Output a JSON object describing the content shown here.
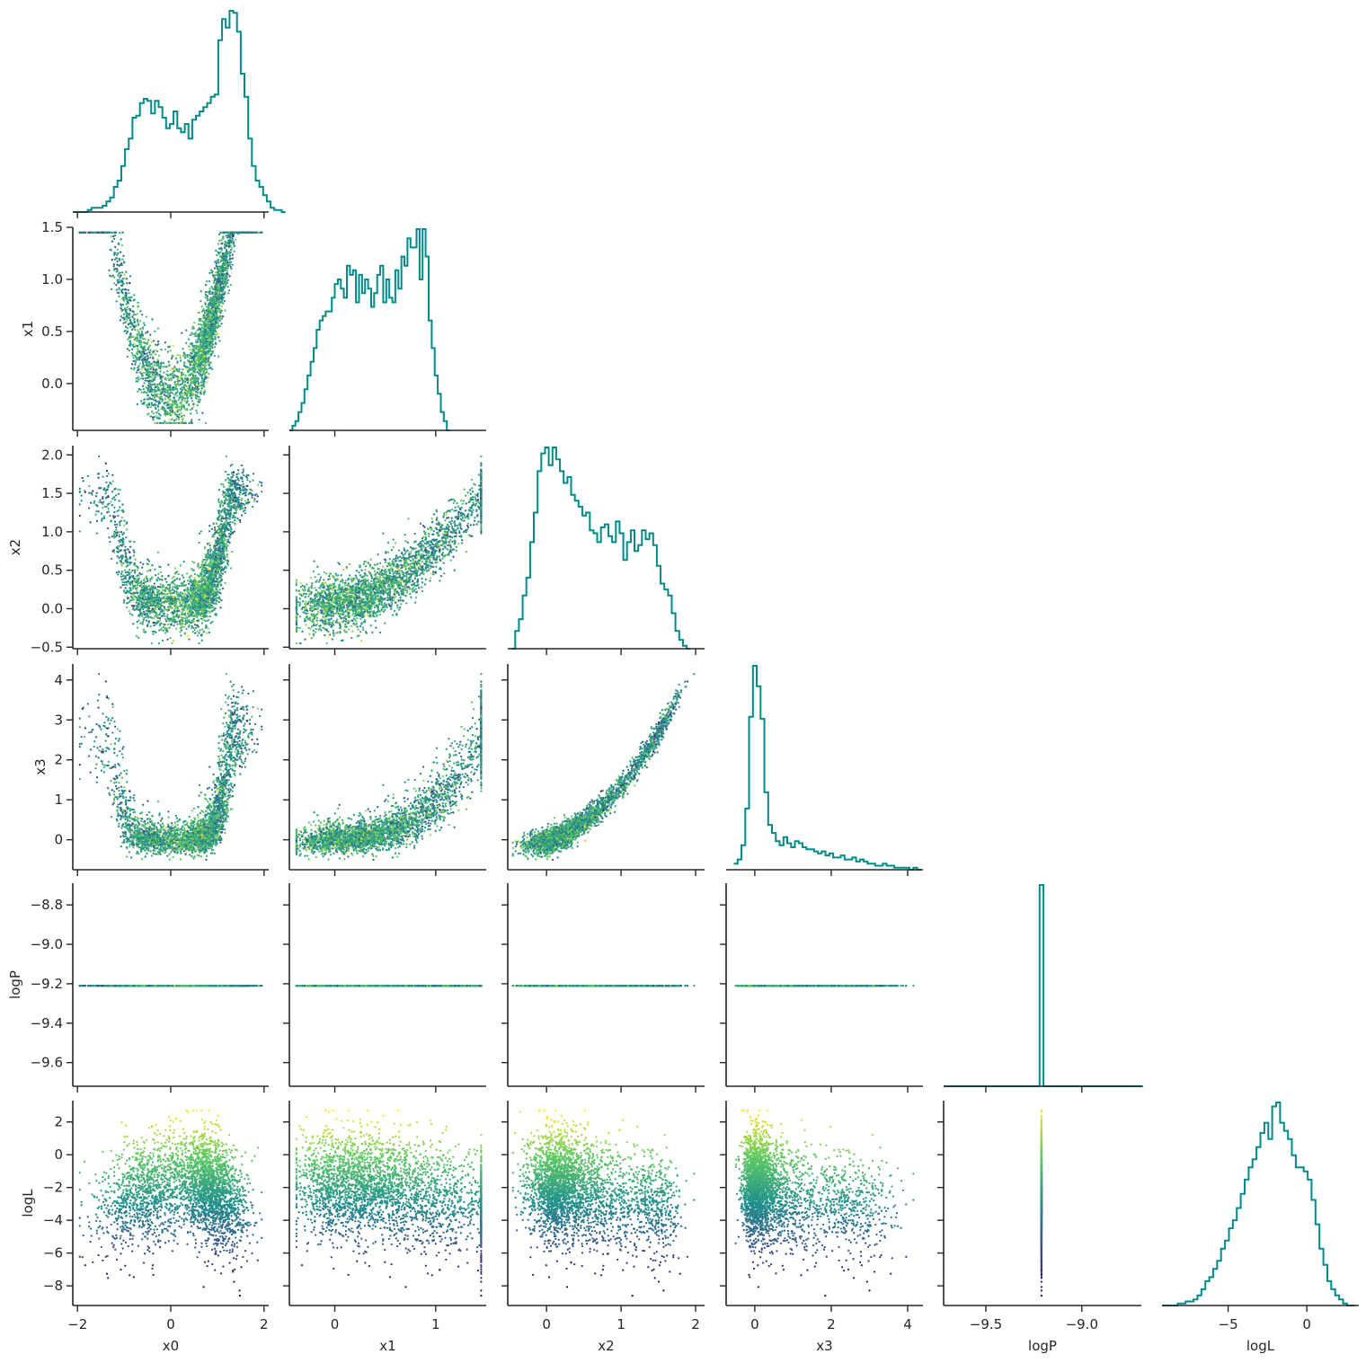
{
  "chart_data": {
    "type": "scatter",
    "kind": "corner-plot",
    "variables": [
      "x0",
      "x1",
      "x2",
      "x3",
      "logP",
      "logL"
    ],
    "axis_labels": [
      "x0",
      "x1",
      "x2",
      "x3",
      "logP",
      "logL"
    ],
    "ranges": {
      "x0": [
        -2.1,
        2.1
      ],
      "x1": [
        -0.45,
        1.5
      ],
      "x2": [
        -0.52,
        2.12
      ],
      "x3": [
        -0.75,
        4.4
      ],
      "logP": [
        -9.72,
        -8.69
      ],
      "logL": [
        -9.2,
        3.3
      ]
    },
    "ticks": {
      "x0": [
        -2,
        0,
        2
      ],
      "x1": [
        0,
        1
      ],
      "x2": [
        0,
        1,
        2
      ],
      "x3": [
        0,
        2,
        4
      ],
      "logP": [
        -9.5,
        -9.0
      ],
      "logL": [
        -5,
        0
      ]
    },
    "y_ticks": {
      "x1": [
        0.0,
        0.5,
        1.0,
        1.5
      ],
      "x2": [
        -0.5,
        0.0,
        0.5,
        1.0,
        1.5,
        2.0
      ],
      "x3": [
        0,
        1,
        2,
        3,
        4
      ],
      "logP": [
        -9.6,
        -9.4,
        -9.2,
        -9.0,
        -8.8
      ],
      "logL": [
        -8,
        -6,
        -4,
        -2,
        0,
        2
      ]
    },
    "tick_labels": {
      "x0": [
        "−2",
        "0",
        "2"
      ],
      "x1": [
        "0",
        "1"
      ],
      "x2": [
        "0",
        "1",
        "2"
      ],
      "x3": [
        "0",
        "2",
        "4"
      ],
      "logP": [
        "−9.5",
        "−9.0"
      ],
      "logL": [
        "−5",
        "0"
      ]
    },
    "y_tick_labels": {
      "x1": [
        "0.0",
        "0.5",
        "1.0",
        "1.5"
      ],
      "x2": [
        "−0.5",
        "0.0",
        "0.5",
        "1.0",
        "1.5",
        "2.0"
      ],
      "x3": [
        "0",
        "1",
        "2",
        "3",
        "4"
      ],
      "logP": [
        "−9.6",
        "−9.4",
        "−9.2",
        "−9.0",
        "−8.8"
      ],
      "logL": [
        "−8",
        "−6",
        "−4",
        "−2",
        "0",
        "2"
      ]
    },
    "logP_constant": -9.21,
    "n_samples": 3000,
    "marginals": {
      "x0": {
        "start": -2.1,
        "width": 0.08,
        "counts": [
          0,
          0,
          0,
          0,
          1,
          2,
          2,
          2,
          3,
          5,
          7,
          12,
          15,
          22,
          30,
          35,
          45,
          46,
          52,
          54,
          53,
          47,
          53,
          50,
          45,
          40,
          42,
          48,
          40,
          38,
          42,
          35,
          44,
          46,
          48,
          50,
          52,
          55,
          56,
          82,
          92,
          88,
          96,
          95,
          86,
          66,
          55,
          35,
          22,
          15,
          12,
          8,
          5,
          2,
          1,
          1,
          0
        ]
      },
      "x1": {
        "start": -0.45,
        "width": 0.03,
        "counts": [
          0,
          1,
          2,
          4,
          6,
          9,
          12,
          15,
          18,
          22,
          24,
          25,
          26,
          26,
          29,
          32,
          33,
          31,
          29,
          36,
          34,
          35,
          28,
          34,
          30,
          33,
          31,
          27,
          30,
          34,
          36,
          28,
          33,
          29,
          28,
          35,
          31,
          38,
          36,
          42,
          40,
          40,
          44,
          33,
          44,
          38,
          24,
          18,
          12,
          8,
          4,
          2,
          0
        ]
      },
      "x2": {
        "start": -0.47,
        "width": 0.05,
        "counts": [
          0,
          6,
          10,
          18,
          24,
          36,
          46,
          60,
          66,
          68,
          62,
          68,
          64,
          60,
          56,
          58,
          52,
          50,
          48,
          45,
          46,
          40,
          39,
          36,
          41,
          42,
          38,
          36,
          43,
          39,
          30,
          36,
          40,
          33,
          35,
          40,
          37,
          39,
          35,
          28,
          22,
          20,
          18,
          12,
          6,
          3,
          1,
          0
        ]
      },
      "x3": {
        "start": -0.55,
        "width": 0.1,
        "counts": [
          3,
          5,
          12,
          30,
          75,
          100,
          90,
          74,
          38,
          22,
          18,
          14,
          12,
          16,
          13,
          11,
          14,
          13,
          11,
          10,
          10,
          9,
          8,
          9,
          7,
          8,
          6,
          6,
          7,
          5,
          5,
          6,
          4,
          5,
          4,
          3,
          3,
          2,
          2,
          3,
          2,
          2,
          1,
          1,
          1,
          1,
          0,
          1,
          0
        ]
      },
      "logP": {
        "start": -9.72,
        "width": 0.02,
        "counts": [
          0,
          0,
          0,
          0,
          0,
          0,
          0,
          0,
          0,
          0,
          0,
          0,
          0,
          0,
          0,
          0,
          0,
          0,
          0,
          0,
          0,
          0,
          0,
          0,
          0,
          3000,
          0,
          0,
          0,
          0,
          0,
          0,
          0,
          0,
          0,
          0,
          0,
          0,
          0,
          0,
          0,
          0,
          0,
          0,
          0,
          0,
          0,
          0,
          0,
          0,
          0,
          0
        ]
      },
      "logL": {
        "start": -9.2,
        "width": 0.25,
        "counts": [
          0,
          0,
          0,
          0,
          1,
          1,
          2,
          2,
          3,
          5,
          8,
          12,
          14,
          18,
          22,
          28,
          32,
          38,
          42,
          48,
          55,
          62,
          68,
          72,
          78,
          85,
          90,
          82,
          98,
          100,
          90,
          86,
          82,
          74,
          68,
          68,
          66,
          62,
          52,
          40,
          28,
          20,
          12,
          8,
          5,
          3,
          1,
          0,
          0
        ]
      }
    },
    "colormap": "viridis",
    "color_by": "logL",
    "grid": false,
    "legend": "none"
  },
  "colors": {
    "histogram": "#008b8b",
    "axes": "#262626",
    "background": "#ffffff",
    "viridis": [
      "#440154",
      "#3b528b",
      "#21918c",
      "#5ec962",
      "#fde725"
    ]
  }
}
